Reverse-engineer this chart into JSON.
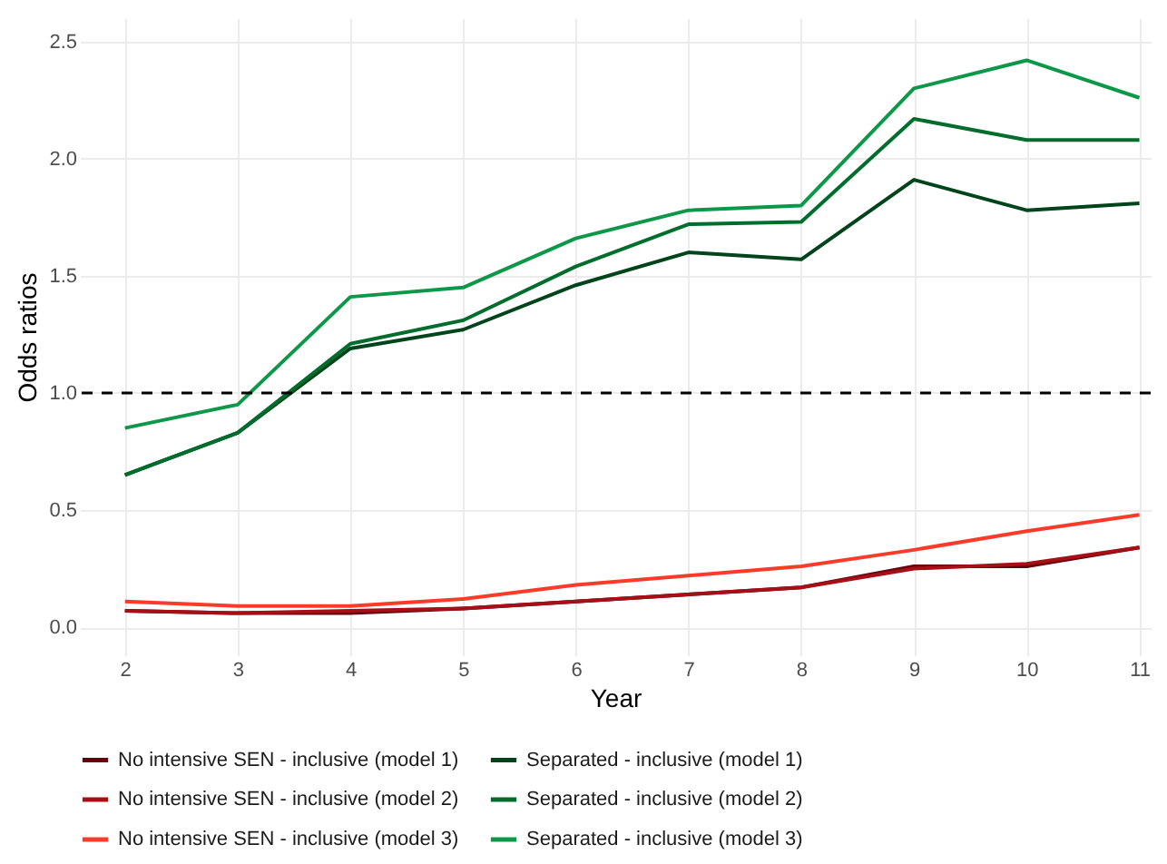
{
  "chart_data": {
    "type": "line",
    "xlabel": "Year",
    "ylabel": "Odds ratios",
    "x": [
      2,
      3,
      4,
      5,
      6,
      7,
      8,
      9,
      10,
      11
    ],
    "series": [
      {
        "name": "No intensive SEN - inclusive (model 1)",
        "color": "#67000d",
        "values": [
          0.07,
          0.06,
          0.06,
          0.08,
          0.11,
          0.14,
          0.17,
          0.26,
          0.26,
          0.34
        ]
      },
      {
        "name": "No intensive SEN - inclusive (model 2)",
        "color": "#a50f15",
        "values": [
          0.07,
          0.06,
          0.07,
          0.08,
          0.11,
          0.14,
          0.17,
          0.25,
          0.27,
          0.34
        ]
      },
      {
        "name": "No intensive SEN - inclusive (model 3)",
        "color": "#fb3b2a",
        "values": [
          0.11,
          0.09,
          0.09,
          0.12,
          0.18,
          0.22,
          0.26,
          0.33,
          0.41,
          0.48
        ]
      },
      {
        "name": "Separated - inclusive (model 1)",
        "color": "#00441b",
        "values": [
          0.65,
          0.83,
          1.19,
          1.27,
          1.46,
          1.6,
          1.57,
          1.91,
          1.78,
          1.81
        ]
      },
      {
        "name": "Separated - inclusive (model 2)",
        "color": "#006d2c",
        "values": [
          0.65,
          0.83,
          1.21,
          1.31,
          1.54,
          1.72,
          1.73,
          2.17,
          2.08,
          2.08
        ]
      },
      {
        "name": "Separated - inclusive (model 3)",
        "color": "#0d9748",
        "values": [
          0.85,
          0.95,
          1.41,
          1.45,
          1.66,
          1.78,
          1.8,
          2.3,
          2.42,
          2.26
        ]
      }
    ],
    "xlim": [
      1.6,
      11.1
    ],
    "xticks": [
      2,
      3,
      4,
      5,
      6,
      7,
      8,
      9,
      10,
      11
    ],
    "ylim": [
      -0.12,
      2.6
    ],
    "yticks": [
      {
        "value": 0,
        "label": "0.0"
      },
      0.5,
      {
        "value": 1,
        "label": "1.0"
      },
      1.5,
      {
        "value": 2,
        "label": "2.0"
      },
      2.5
    ],
    "ref_lines": [
      {
        "axis": "y",
        "value": 1,
        "line_style": "dashed",
        "color": "#000000"
      }
    ],
    "grid": true,
    "legend": "bottom",
    "line_style": "solid",
    "marker": "none"
  }
}
